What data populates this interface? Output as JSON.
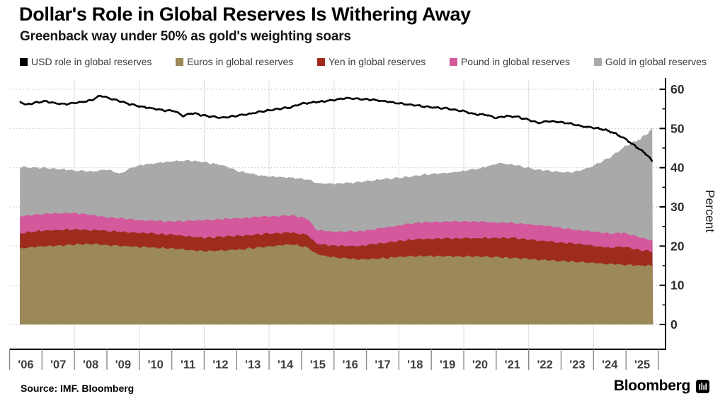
{
  "header": {
    "title": "Dollar's Role in Global Reserves Is Withering Away",
    "subtitle": "Greenback way under 50% as gold's weighting soars"
  },
  "legend": [
    {
      "label": "USD role in global reserves",
      "color": "#000000"
    },
    {
      "label": "Euros in global reserves",
      "color": "#9b8958"
    },
    {
      "label": "Yen in global reserves",
      "color": "#9e2c1d"
    },
    {
      "label": "Pound in global reserves",
      "color": "#d4589c"
    },
    {
      "label": "Gold in global reserves",
      "color": "#a9a9a9"
    }
  ],
  "footer": {
    "source": "Source: IMF. Bloomberg",
    "brand": "Bloomberg"
  },
  "chart_data": {
    "type": "area",
    "subtype": "stacked-areas-with-line-overlay",
    "title": "Dollar's Role in Global Reserves Is Withering Away",
    "subtitle": "Greenback way under 50% as gold's weighting soars",
    "ylabel": "Percent",
    "y_axis": {
      "min": 0,
      "max": 60,
      "major_step": 10,
      "minor_step": 5,
      "tick_labels": [
        "0",
        "10",
        "20",
        "30",
        "40",
        "50",
        "60"
      ],
      "side": "right",
      "grid": "dotted-horizontal"
    },
    "x_axis": {
      "start_year": 2006,
      "end_year": 2026,
      "data_start": 2006.32,
      "data_end": 2025.83,
      "tick_labels": [
        "'06",
        "'07",
        "'08",
        "'09",
        "'10",
        "'11",
        "'12",
        "'13",
        "'14",
        "'15",
        "'16",
        "'17",
        "'18",
        "'19",
        "'20",
        "'21",
        "'22",
        "'23",
        "'24",
        "'25"
      ],
      "vertical_gridlines_every_years": 2,
      "vertical_gridlines_first": 2008
    },
    "note": "Area series values are cumulative stack tops in percent; [year, percent] control points read from the plot.",
    "series": [
      {
        "name": "Euros in global reserves",
        "type": "area",
        "color": "#9b8958",
        "stack_order": 1,
        "points": [
          [
            2006.32,
            19.4
          ],
          [
            2007,
            19.9
          ],
          [
            2008,
            20.4
          ],
          [
            2008.6,
            20.6
          ],
          [
            2009,
            20.2
          ],
          [
            2010,
            19.8
          ],
          [
            2011,
            19.4
          ],
          [
            2012,
            18.7
          ],
          [
            2013,
            19.1
          ],
          [
            2014,
            19.9
          ],
          [
            2014.7,
            20.5
          ],
          [
            2015.2,
            19.6
          ],
          [
            2015.45,
            17.9
          ],
          [
            2016,
            17.1
          ],
          [
            2016.8,
            16.6
          ],
          [
            2017.5,
            16.9
          ],
          [
            2018.5,
            17.5
          ],
          [
            2019.5,
            17.4
          ],
          [
            2020.5,
            17.3
          ],
          [
            2021.5,
            17.0
          ],
          [
            2022.5,
            16.4
          ],
          [
            2023.5,
            16.0
          ],
          [
            2024.5,
            15.4
          ],
          [
            2025.4,
            15.1
          ],
          [
            2025.83,
            15.0
          ]
        ]
      },
      {
        "name": "Yen in global reserves",
        "type": "area",
        "color": "#9e2c1d",
        "stack_order": 2,
        "points": [
          [
            2006.32,
            23.3
          ],
          [
            2007,
            23.9
          ],
          [
            2008,
            24.3
          ],
          [
            2009,
            23.9
          ],
          [
            2010,
            23.4
          ],
          [
            2011,
            22.9
          ],
          [
            2012,
            22.1
          ],
          [
            2013,
            22.6
          ],
          [
            2014,
            23.2
          ],
          [
            2014.7,
            23.5
          ],
          [
            2015.2,
            22.8
          ],
          [
            2015.45,
            20.6
          ],
          [
            2016,
            20.1
          ],
          [
            2016.8,
            20.0
          ],
          [
            2017.5,
            20.8
          ],
          [
            2018.5,
            21.7
          ],
          [
            2019.5,
            22.0
          ],
          [
            2020.5,
            22.0
          ],
          [
            2021.5,
            22.1
          ],
          [
            2022.5,
            21.3
          ],
          [
            2023.5,
            20.6
          ],
          [
            2024.5,
            19.6
          ],
          [
            2024.9,
            19.9
          ],
          [
            2025.4,
            19.0
          ],
          [
            2025.83,
            18.6
          ]
        ]
      },
      {
        "name": "Pound in global reserves",
        "type": "area",
        "color": "#d4589c",
        "stack_order": 3,
        "points": [
          [
            2006.32,
            27.6
          ],
          [
            2007,
            28.2
          ],
          [
            2008,
            28.5
          ],
          [
            2009,
            27.4
          ],
          [
            2010,
            26.6
          ],
          [
            2011,
            26.3
          ],
          [
            2012,
            26.6
          ],
          [
            2013,
            27.1
          ],
          [
            2014,
            27.6
          ],
          [
            2014.7,
            27.8
          ],
          [
            2015.2,
            26.9
          ],
          [
            2015.45,
            24.2
          ],
          [
            2016,
            23.6
          ],
          [
            2016.8,
            23.8
          ],
          [
            2017.5,
            24.6
          ],
          [
            2018.5,
            25.9
          ],
          [
            2019.5,
            26.3
          ],
          [
            2020.5,
            26.2
          ],
          [
            2021.5,
            25.9
          ],
          [
            2022.5,
            25.2
          ],
          [
            2023.5,
            24.1
          ],
          [
            2024.5,
            23.2
          ],
          [
            2024.9,
            23.4
          ],
          [
            2025.4,
            22.3
          ],
          [
            2025.83,
            21.4
          ]
        ]
      },
      {
        "name": "Gold in global reserves",
        "type": "area",
        "color": "#a9a9a9",
        "stack_order": 4,
        "points": [
          [
            2006.32,
            40.2
          ],
          [
            2007,
            40.0
          ],
          [
            2008,
            39.3
          ],
          [
            2008.6,
            39.0
          ],
          [
            2009,
            39.6
          ],
          [
            2009.4,
            38.4
          ],
          [
            2009.7,
            39.8
          ],
          [
            2010,
            40.6
          ],
          [
            2010.8,
            41.5
          ],
          [
            2011.5,
            41.9
          ],
          [
            2012,
            41.4
          ],
          [
            2012.6,
            40.6
          ],
          [
            2013,
            39.2
          ],
          [
            2013.6,
            38.2
          ],
          [
            2014,
            37.8
          ],
          [
            2014.7,
            37.4
          ],
          [
            2015.2,
            37.0
          ],
          [
            2015.45,
            36.1
          ],
          [
            2016,
            35.9
          ],
          [
            2016.6,
            36.2
          ],
          [
            2017.3,
            36.9
          ],
          [
            2018,
            37.4
          ],
          [
            2019,
            38.4
          ],
          [
            2019.8,
            38.9
          ],
          [
            2020.5,
            39.8
          ],
          [
            2021.1,
            41.2
          ],
          [
            2021.6,
            40.7
          ],
          [
            2022.2,
            39.6
          ],
          [
            2022.8,
            39.0
          ],
          [
            2023.3,
            38.8
          ],
          [
            2023.8,
            39.8
          ],
          [
            2024.2,
            41.3
          ],
          [
            2024.6,
            43.2
          ],
          [
            2024.95,
            45.3
          ],
          [
            2025.3,
            46.8
          ],
          [
            2025.6,
            48.3
          ],
          [
            2025.83,
            50.2
          ]
        ]
      },
      {
        "name": "USD role in global reserves",
        "type": "line",
        "color": "#000000",
        "points": [
          [
            2006.32,
            56.9
          ],
          [
            2006.5,
            56.1
          ],
          [
            2006.8,
            56.6
          ],
          [
            2007.1,
            57.0
          ],
          [
            2007.4,
            56.4
          ],
          [
            2007.8,
            56.2
          ],
          [
            2008.1,
            56.6
          ],
          [
            2008.5,
            57.1
          ],
          [
            2008.8,
            58.4
          ],
          [
            2009.1,
            57.6
          ],
          [
            2009.4,
            57.0
          ],
          [
            2009.7,
            56.2
          ],
          [
            2010,
            55.7
          ],
          [
            2010.4,
            55.1
          ],
          [
            2010.8,
            54.6
          ],
          [
            2011.1,
            54.4
          ],
          [
            2011.35,
            53.1
          ],
          [
            2011.6,
            53.9
          ],
          [
            2012,
            53.3
          ],
          [
            2012.5,
            52.7
          ],
          [
            2012.9,
            53.1
          ],
          [
            2013.3,
            53.6
          ],
          [
            2013.7,
            54.2
          ],
          [
            2014.1,
            54.8
          ],
          [
            2014.6,
            55.3
          ],
          [
            2015,
            56.3
          ],
          [
            2015.5,
            56.8
          ],
          [
            2016,
            57.2
          ],
          [
            2016.4,
            57.8
          ],
          [
            2016.8,
            57.5
          ],
          [
            2017.2,
            57.3
          ],
          [
            2017.6,
            56.9
          ],
          [
            2018,
            56.4
          ],
          [
            2018.5,
            55.9
          ],
          [
            2019,
            55.4
          ],
          [
            2019.5,
            55.1
          ],
          [
            2020,
            54.4
          ],
          [
            2020.3,
            53.7
          ],
          [
            2020.7,
            53.5
          ],
          [
            2021,
            52.7
          ],
          [
            2021.3,
            53.2
          ],
          [
            2021.7,
            52.9
          ],
          [
            2022,
            52.2
          ],
          [
            2022.3,
            51.4
          ],
          [
            2022.6,
            51.9
          ],
          [
            2022.9,
            51.7
          ],
          [
            2023.3,
            51.2
          ],
          [
            2023.6,
            50.6
          ],
          [
            2024,
            50.2
          ],
          [
            2024.35,
            49.7
          ],
          [
            2024.7,
            48.6
          ],
          [
            2025,
            47.2
          ],
          [
            2025.25,
            45.7
          ],
          [
            2025.5,
            44.2
          ],
          [
            2025.7,
            42.9
          ],
          [
            2025.83,
            41.2
          ]
        ]
      }
    ]
  }
}
